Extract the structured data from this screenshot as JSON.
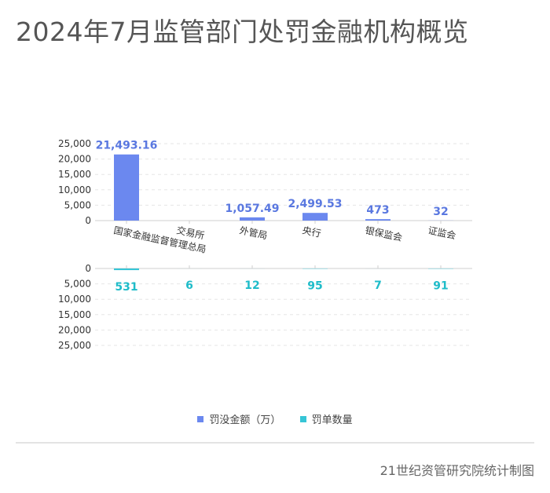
{
  "title": "2024年7月监管部门处罚金融机构概览",
  "source": "21世纪资管研究院统计制图",
  "colors": {
    "fine": "#6b88ef",
    "count": "#36c5d6",
    "fine_label": "#5a78e0",
    "count_label": "#1fbcc9"
  },
  "chart_data": {
    "type": "bar",
    "categories": [
      "国家金融监督管理总局",
      "交易所",
      "外管局",
      "央行",
      "银保监会",
      "证监会"
    ],
    "series": [
      {
        "name": "罚没金额（万）",
        "values": [
          21493.16,
          0,
          1057.49,
          2499.53,
          473,
          32
        ],
        "labels": [
          "21,493.16",
          "",
          "1,057.49",
          "2,499.53",
          "473",
          "32"
        ]
      },
      {
        "name": "罚单数量",
        "values": [
          531,
          6,
          12,
          95,
          7,
          91
        ],
        "labels": [
          "531",
          "6",
          "12",
          "95",
          "7",
          "91"
        ]
      }
    ],
    "ylim_top": [
      0,
      25000
    ],
    "ylim_bottom": [
      0,
      25000
    ],
    "yticks": [
      "0",
      "5,000",
      "10,000",
      "15,000",
      "20,000",
      "25,000"
    ],
    "grid": true,
    "legend_position": "bottom"
  }
}
